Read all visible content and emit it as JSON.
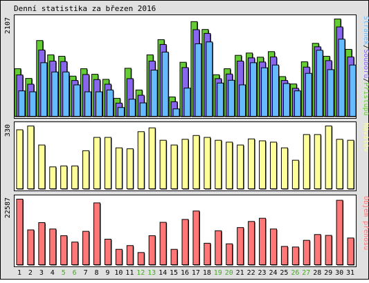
{
  "title": "Denní statistika za březen 2016",
  "colors": {
    "frame_bg": "#e0e0e0",
    "panel_bg": "#ffffff",
    "border": "#000000",
    "shadow": "#000000",
    "hits": "#66cc33",
    "files": "#8866ee",
    "pages": "#66bbff",
    "visits": "#ffff99",
    "kbytes": "#ff7777",
    "weekday_label": "#000000",
    "weekend_label": "#44aa22",
    "text": "#000000"
  },
  "chart_data": [
    {
      "type": "bar",
      "name": "top",
      "ymax_label": "2107",
      "ymax": 2107,
      "legend": [
        {
          "text": "Stránek",
          "color": "#66bbff"
        },
        {
          "text": "/",
          "color": "#000000"
        },
        {
          "text": "Souborů",
          "color": "#8866ee"
        },
        {
          "text": "/",
          "color": "#000000"
        },
        {
          "text": "Přístupů",
          "color": "#66cc33"
        }
      ],
      "series": [
        {
          "name": "Přístupů",
          "color": "#66cc33",
          "values": [
            1030,
            820,
            1640,
            1330,
            1300,
            870,
            1030,
            910,
            800,
            390,
            1040,
            570,
            1330,
            1660,
            420,
            1170,
            2050,
            1880,
            900,
            1030,
            1320,
            1370,
            1280,
            1400,
            860,
            700,
            1180,
            1580,
            1300,
            2107,
            1450
          ]
        },
        {
          "name": "Souborů",
          "color": "#8866ee",
          "values": [
            940,
            740,
            1480,
            1240,
            1230,
            820,
            950,
            840,
            740,
            330,
            860,
            500,
            1240,
            1600,
            360,
            1100,
            1920,
            1840,
            860,
            960,
            1240,
            1310,
            1220,
            1330,
            820,
            650,
            1110,
            1550,
            1250,
            1980,
            1330
          ]
        },
        {
          "name": "Stránek",
          "color": "#66bbff",
          "values": [
            640,
            620,
            1250,
            1050,
            1050,
            770,
            620,
            620,
            660,
            280,
            460,
            380,
            1090,
            1480,
            250,
            700,
            1660,
            1700,
            810,
            870,
            770,
            1250,
            1140,
            1200,
            800,
            640,
            1020,
            1520,
            1100,
            1760,
            1200
          ]
        }
      ]
    },
    {
      "type": "bar",
      "name": "mid",
      "ymax_label": "330",
      "ymax": 330,
      "legend": [
        {
          "text": "Návštěv",
          "color": "#ffff99"
        }
      ],
      "series": [
        {
          "name": "Návštěv",
          "color": "#ffff99",
          "values": [
            310,
            330,
            230,
            115,
            120,
            120,
            200,
            270,
            270,
            215,
            210,
            300,
            320,
            255,
            230,
            260,
            280,
            270,
            255,
            245,
            230,
            262,
            252,
            245,
            215,
            150,
            285,
            285,
            330,
            260,
            255
          ]
        }
      ]
    },
    {
      "type": "bar",
      "name": "bottom",
      "ymax_label": "22587",
      "ymax": 22587,
      "legend": [
        {
          "text": "Objem přenosu",
          "color": "#ff7777"
        }
      ],
      "series": [
        {
          "name": "Objem přenosu",
          "color": "#ff7777",
          "values": [
            22587,
            12000,
            14500,
            12300,
            10000,
            7800,
            11500,
            21300,
            8800,
            5300,
            6600,
            4200,
            10000,
            14600,
            5300,
            15600,
            18500,
            7400,
            11700,
            7200,
            12800,
            14900,
            16000,
            12300,
            6300,
            6100,
            8400,
            10400,
            10100,
            22200,
            9200
          ]
        }
      ]
    }
  ],
  "days": [
    "1",
    "2",
    "3",
    "4",
    "5",
    "6",
    "7",
    "8",
    "9",
    "10",
    "11",
    "12",
    "13",
    "14",
    "15",
    "16",
    "17",
    "18",
    "19",
    "20",
    "21",
    "22",
    "23",
    "24",
    "25",
    "26",
    "27",
    "28",
    "29",
    "30",
    "31"
  ],
  "weekend_days": [
    5,
    6,
    12,
    13,
    19,
    20,
    26,
    27
  ]
}
